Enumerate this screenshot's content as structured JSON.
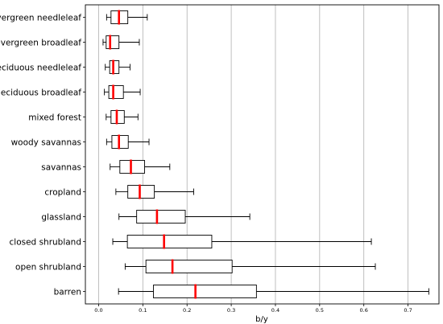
{
  "chart_data": {
    "type": "boxplot",
    "orientation": "horizontal",
    "xlabel": "b/y",
    "ylabel": "",
    "xlim": [
      -0.03,
      0.77
    ],
    "xticks": [
      0.0,
      0.1,
      0.2,
      0.3,
      0.4,
      0.5,
      0.6,
      0.7
    ],
    "xtick_labels": [
      "0.0",
      "0.1",
      "0.2",
      "0.3",
      "0.4",
      "0.5",
      "0.6",
      "0.7"
    ],
    "grid": "vertical",
    "colors": {
      "box": "#000000",
      "median": "#ff0000",
      "grid": "#b0b0b0"
    },
    "categories": [
      "evergreen needleleaf",
      "evergreen broadleaf",
      "deciduous needleleaf",
      "deciduous broadleaf",
      "mixed forest",
      "woody savannas",
      "savannas",
      "cropland",
      "glassland",
      "closed shrubland",
      "open shrubland",
      "barren"
    ],
    "boxes": [
      {
        "whisker_low": 0.018,
        "q1": 0.028,
        "median": 0.046,
        "q3": 0.066,
        "whisker_high": 0.11
      },
      {
        "whisker_low": 0.01,
        "q1": 0.017,
        "median": 0.026,
        "q3": 0.046,
        "whisker_high": 0.092
      },
      {
        "whisker_low": 0.015,
        "q1": 0.025,
        "median": 0.033,
        "q3": 0.046,
        "whisker_high": 0.071
      },
      {
        "whisker_low": 0.013,
        "q1": 0.023,
        "median": 0.033,
        "q3": 0.056,
        "whisker_high": 0.094
      },
      {
        "whisker_low": 0.017,
        "q1": 0.028,
        "median": 0.041,
        "q3": 0.058,
        "whisker_high": 0.089
      },
      {
        "whisker_low": 0.018,
        "q1": 0.03,
        "median": 0.046,
        "q3": 0.067,
        "whisker_high": 0.114
      },
      {
        "whisker_low": 0.026,
        "q1": 0.048,
        "median": 0.073,
        "q3": 0.104,
        "whisker_high": 0.161
      },
      {
        "whisker_low": 0.039,
        "q1": 0.066,
        "median": 0.093,
        "q3": 0.126,
        "whisker_high": 0.215
      },
      {
        "whisker_low": 0.046,
        "q1": 0.086,
        "median": 0.132,
        "q3": 0.196,
        "whisker_high": 0.342
      },
      {
        "whisker_low": 0.032,
        "q1": 0.065,
        "median": 0.148,
        "q3": 0.256,
        "whisker_high": 0.617
      },
      {
        "whisker_low": 0.06,
        "q1": 0.107,
        "median": 0.167,
        "q3": 0.302,
        "whisker_high": 0.626
      },
      {
        "whisker_low": 0.045,
        "q1": 0.124,
        "median": 0.219,
        "q3": 0.357,
        "whisker_high": 0.747
      }
    ]
  }
}
